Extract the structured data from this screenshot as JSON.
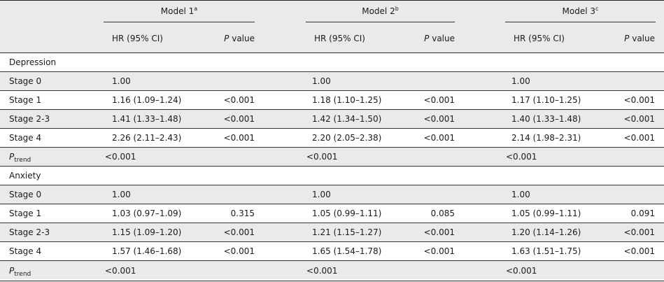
{
  "header": {
    "models": [
      {
        "label": "Model 1",
        "sup": "a"
      },
      {
        "label": "Model 2",
        "sup": "b"
      },
      {
        "label": "Model 3",
        "sup": "c"
      }
    ],
    "hr_label": "HR (95% CI)",
    "p_label_italic": "P",
    "p_label_rest": " value"
  },
  "sections": [
    {
      "title": "Depression",
      "rows": [
        {
          "label": "Stage 0",
          "cells": [
            "1.00",
            "",
            "1.00",
            "",
            "1.00",
            ""
          ]
        },
        {
          "label": "Stage 1",
          "cells": [
            "1.16 (1.09–1.24)",
            "<0.001",
            "1.18 (1.10–1.25)",
            "<0.001",
            "1.17 (1.10–1.25)",
            "<0.001"
          ]
        },
        {
          "label": "Stage 2-3",
          "cells": [
            "1.41 (1.33–1.48)",
            "<0.001",
            "1.42 (1.34–1.50)",
            "<0.001",
            "1.40 (1.33–1.48)",
            "<0.001"
          ]
        },
        {
          "label": "Stage 4",
          "cells": [
            "2.26 (2.11–2.43)",
            "<0.001",
            "2.20 (2.05–2.38)",
            "<0.001",
            "2.14 (1.98–2.31)",
            "<0.001"
          ]
        }
      ],
      "trend": {
        "label_main": "P",
        "label_sub": "trend",
        "values": [
          "<0.001",
          "<0.001",
          "<0.001"
        ]
      }
    },
    {
      "title": "Anxiety",
      "rows": [
        {
          "label": "Stage 0",
          "cells": [
            "1.00",
            "",
            "1.00",
            "",
            "1.00",
            ""
          ]
        },
        {
          "label": "Stage 1",
          "cells": [
            "1.03 (0.97–1.09)",
            "0.315",
            "1.05 (0.99–1.11)",
            "0.085",
            "1.05 (0.99–1.11)",
            "0.091"
          ]
        },
        {
          "label": "Stage 2-3",
          "cells": [
            "1.15 (1.09–1.20)",
            "<0.001",
            "1.21 (1.15–1.27)",
            "<0.001",
            "1.20 (1.14–1.26)",
            "<0.001"
          ]
        },
        {
          "label": "Stage 4",
          "cells": [
            "1.57 (1.46–1.68)",
            "<0.001",
            "1.65 (1.54–1.78)",
            "<0.001",
            "1.63 (1.51–1.75)",
            "<0.001"
          ]
        }
      ],
      "trend": {
        "label_main": "P",
        "label_sub": "trend",
        "values": [
          "<0.001",
          "<0.001",
          "<0.001"
        ]
      }
    }
  ]
}
